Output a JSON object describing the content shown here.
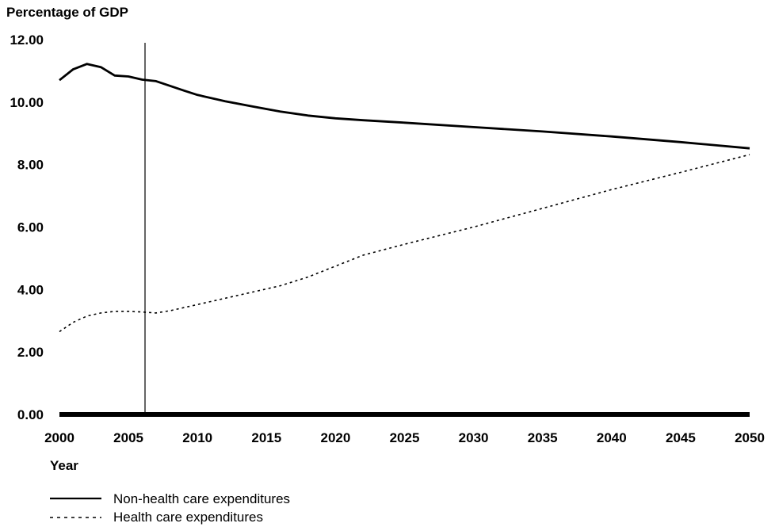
{
  "chart_data": {
    "type": "line",
    "title": "",
    "ylabel": "Percentage of GDP",
    "xlabel": "Year",
    "ylim": [
      0,
      12
    ],
    "xlim": [
      2000,
      2050
    ],
    "y_ticks": [
      "0.00",
      "2.00",
      "4.00",
      "6.00",
      "8.00",
      "10.00",
      "12.00"
    ],
    "y_tick_values": [
      0,
      2,
      4,
      6,
      8,
      10,
      12
    ],
    "x_ticks": [
      "2000",
      "2005",
      "2010",
      "2015",
      "2020",
      "2025",
      "2030",
      "2035",
      "2040",
      "2045",
      "2050"
    ],
    "x_tick_values": [
      2000,
      2005,
      2010,
      2015,
      2020,
      2025,
      2030,
      2035,
      2040,
      2045,
      2050
    ],
    "reference_line_x": 2006.2,
    "grid": false,
    "legend_position": "bottom-left",
    "series": [
      {
        "name": "Non-health care expenditures",
        "style": "solid",
        "color": "#000000",
        "x": [
          2000,
          2001,
          2002,
          2003,
          2004,
          2005,
          2006,
          2007,
          2008,
          2009,
          2010,
          2012,
          2014,
          2016,
          2018,
          2020,
          2022,
          2025,
          2030,
          2035,
          2040,
          2045,
          2050
        ],
        "values": [
          10.7,
          11.05,
          11.22,
          11.12,
          10.85,
          10.82,
          10.72,
          10.67,
          10.52,
          10.37,
          10.23,
          10.03,
          9.86,
          9.7,
          9.57,
          9.48,
          9.42,
          9.34,
          9.2,
          9.06,
          8.9,
          8.72,
          8.52
        ]
      },
      {
        "name": "Health care expenditures",
        "style": "dashed",
        "color": "#000000",
        "x": [
          2000,
          2001,
          2002,
          2003,
          2004,
          2005,
          2006,
          2007,
          2008,
          2010,
          2012,
          2014,
          2016,
          2018,
          2020,
          2022,
          2025,
          2030,
          2035,
          2040,
          2045,
          2050
        ],
        "values": [
          2.65,
          2.95,
          3.15,
          3.25,
          3.3,
          3.3,
          3.28,
          3.25,
          3.32,
          3.52,
          3.72,
          3.92,
          4.12,
          4.4,
          4.75,
          5.1,
          5.45,
          6.0,
          6.6,
          7.2,
          7.75,
          8.32
        ]
      }
    ]
  }
}
